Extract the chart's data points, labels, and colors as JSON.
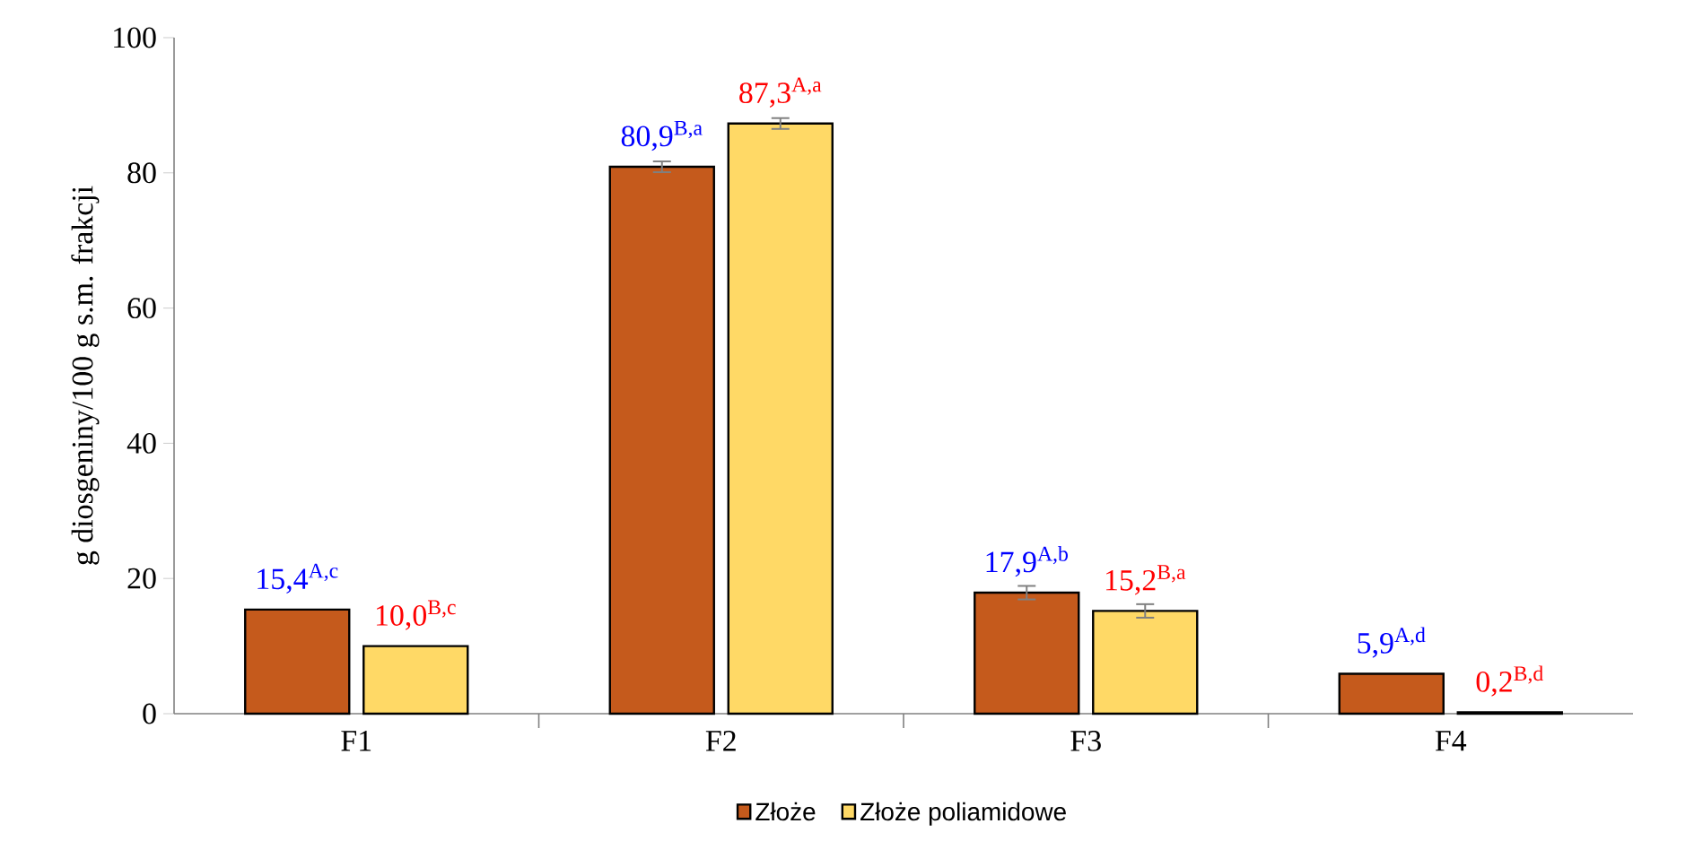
{
  "chart_data": {
    "type": "bar",
    "ylabel": "g diosgeniny/100 g s.m. frakcji",
    "categories": [
      "F1",
      "F2",
      "F3",
      "F4"
    ],
    "series": [
      {
        "name": "Złoże",
        "color": "#c55a1c",
        "values": [
          15.4,
          80.9,
          17.9,
          5.9
        ],
        "errors": [
          null,
          0.8,
          1.0,
          null
        ],
        "value_labels": [
          "15,4$^{A,c}$",
          "80,9$^{B,a}$",
          "17,9$^{A,b}$",
          "5,9$^{A,d}$"
        ]
      },
      {
        "name": "Złoże poliamidowe",
        "color": "#ffd966",
        "values": [
          10.0,
          87.3,
          15.2,
          0.2
        ],
        "errors": [
          null,
          0.8,
          1.0,
          null
        ],
        "value_labels": [
          "10,0$^{B,c}$",
          "87,3$^{A,a}$",
          "15,2$^{B,a}$",
          "0,2$^{B,d}$"
        ]
      }
    ],
    "ylim": [
      0,
      100
    ],
    "yticks": [
      0,
      20,
      40,
      60,
      80,
      100
    ],
    "legend": "bottom",
    "grid": false
  }
}
